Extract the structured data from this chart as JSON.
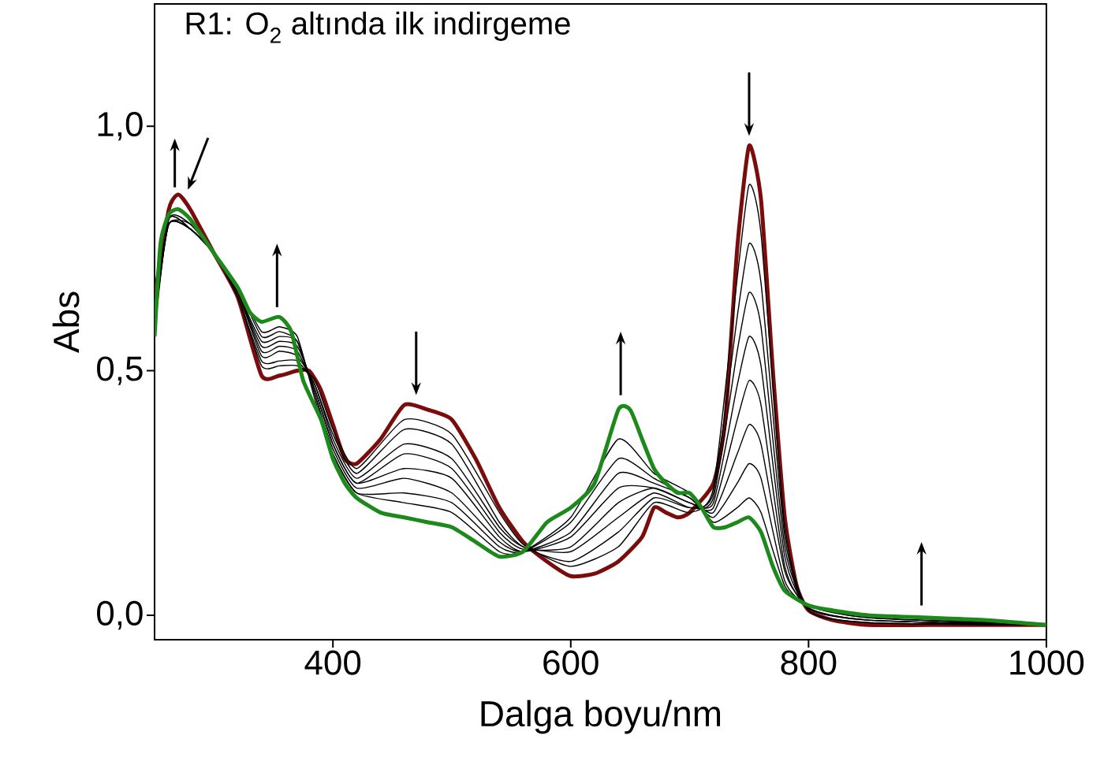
{
  "chart_data": {
    "type": "line",
    "title": "R1: O$_{2}$ altında ilk indirgeme",
    "xlabel": "Dalga boyu/nm",
    "ylabel": "Abs",
    "xlim": [
      250,
      1000
    ],
    "ylim": [
      -0.05,
      1.25
    ],
    "xticks": [
      400,
      600,
      800,
      1000
    ],
    "yticks": [
      {
        "value": 0,
        "label": "0,0"
      },
      {
        "value": 0.5,
        "label": "0,5"
      },
      {
        "value": 1.0,
        "label": "1,0"
      }
    ],
    "grid": false,
    "marker": "none",
    "line_style": "solid",
    "series": [
      {
        "color": "#7b0c0c",
        "x": [
          250,
          262,
          270,
          280,
          300,
          320,
          340,
          355,
          370,
          380,
          390,
          400,
          410,
          420,
          440,
          460,
          480,
          500,
          520,
          540,
          560,
          580,
          600,
          620,
          640,
          660,
          670,
          680,
          690,
          700,
          720,
          730,
          740,
          750,
          760,
          770,
          780,
          790,
          800,
          820,
          850,
          900,
          950,
          1000
        ],
        "values": [
          0.65,
          0.83,
          0.86,
          0.83,
          0.74,
          0.65,
          0.49,
          0.49,
          0.5,
          0.5,
          0.46,
          0.39,
          0.32,
          0.31,
          0.36,
          0.43,
          0.42,
          0.4,
          0.32,
          0.22,
          0.15,
          0.11,
          0.08,
          0.085,
          0.11,
          0.16,
          0.22,
          0.21,
          0.2,
          0.21,
          0.27,
          0.4,
          0.75,
          0.96,
          0.85,
          0.5,
          0.2,
          0.06,
          0.01,
          -0.01,
          -0.02,
          -0.02,
          -0.02,
          -0.02
        ]
      },
      {
        "color": "#000000",
        "x": [
          250,
          262,
          280,
          300,
          320,
          340,
          355,
          370,
          385,
          400,
          420,
          460,
          500,
          540,
          560,
          600,
          640,
          670,
          700,
          720,
          740,
          750,
          760,
          780,
          800,
          850,
          1000
        ],
        "values": [
          0.64,
          0.8,
          0.8,
          0.74,
          0.65,
          0.51,
          0.51,
          0.51,
          0.48,
          0.38,
          0.3,
          0.4,
          0.37,
          0.21,
          0.145,
          0.1,
          0.14,
          0.23,
          0.21,
          0.26,
          0.69,
          0.88,
          0.78,
          0.18,
          0.01,
          -0.015,
          -0.02
        ]
      },
      {
        "color": "#000000",
        "x": [
          250,
          262,
          280,
          300,
          320,
          340,
          355,
          370,
          385,
          400,
          420,
          460,
          500,
          540,
          560,
          600,
          640,
          670,
          700,
          720,
          740,
          750,
          760,
          780,
          800,
          850,
          1000
        ],
        "values": [
          0.63,
          0.8,
          0.79,
          0.74,
          0.65,
          0.52,
          0.52,
          0.52,
          0.47,
          0.37,
          0.29,
          0.38,
          0.35,
          0.19,
          0.14,
          0.11,
          0.17,
          0.24,
          0.22,
          0.25,
          0.61,
          0.76,
          0.68,
          0.16,
          0.01,
          -0.015,
          -0.02
        ]
      },
      {
        "color": "#000000",
        "x": [
          250,
          262,
          280,
          300,
          320,
          340,
          355,
          370,
          385,
          400,
          420,
          460,
          500,
          540,
          560,
          600,
          640,
          670,
          700,
          720,
          740,
          750,
          760,
          780,
          800,
          850,
          1000
        ],
        "values": [
          0.62,
          0.8,
          0.79,
          0.74,
          0.66,
          0.53,
          0.54,
          0.53,
          0.47,
          0.36,
          0.28,
          0.35,
          0.32,
          0.18,
          0.14,
          0.13,
          0.2,
          0.25,
          0.22,
          0.24,
          0.54,
          0.66,
          0.59,
          0.14,
          0.015,
          -0.01,
          -0.02
        ]
      },
      {
        "color": "#000000",
        "x": [
          250,
          262,
          280,
          300,
          320,
          340,
          355,
          370,
          385,
          400,
          420,
          460,
          500,
          540,
          560,
          600,
          640,
          670,
          700,
          720,
          740,
          750,
          760,
          780,
          800,
          850,
          1000
        ],
        "values": [
          0.61,
          0.8,
          0.79,
          0.74,
          0.66,
          0.54,
          0.55,
          0.54,
          0.46,
          0.35,
          0.27,
          0.33,
          0.3,
          0.17,
          0.135,
          0.14,
          0.23,
          0.26,
          0.23,
          0.23,
          0.47,
          0.57,
          0.51,
          0.12,
          0.015,
          -0.01,
          -0.02
        ]
      },
      {
        "color": "#000000",
        "x": [
          250,
          262,
          280,
          300,
          320,
          340,
          355,
          370,
          385,
          400,
          420,
          460,
          500,
          540,
          560,
          600,
          640,
          670,
          700,
          720,
          740,
          750,
          760,
          780,
          800,
          850,
          1000
        ],
        "values": [
          0.6,
          0.8,
          0.79,
          0.74,
          0.66,
          0.55,
          0.56,
          0.55,
          0.46,
          0.35,
          0.27,
          0.3,
          0.28,
          0.16,
          0.13,
          0.16,
          0.26,
          0.26,
          0.23,
          0.22,
          0.4,
          0.48,
          0.43,
          0.1,
          0.015,
          -0.01,
          -0.02
        ]
      },
      {
        "color": "#000000",
        "x": [
          250,
          262,
          280,
          300,
          320,
          340,
          355,
          370,
          385,
          400,
          420,
          460,
          500,
          540,
          560,
          600,
          640,
          670,
          700,
          720,
          740,
          750,
          760,
          780,
          800,
          850,
          1000
        ],
        "values": [
          0.6,
          0.81,
          0.79,
          0.74,
          0.66,
          0.56,
          0.57,
          0.56,
          0.45,
          0.34,
          0.26,
          0.28,
          0.25,
          0.15,
          0.13,
          0.17,
          0.29,
          0.27,
          0.24,
          0.21,
          0.33,
          0.39,
          0.35,
          0.09,
          0.02,
          -0.005,
          -0.02
        ]
      },
      {
        "color": "#000000",
        "x": [
          250,
          262,
          280,
          300,
          320,
          340,
          355,
          370,
          385,
          400,
          420,
          460,
          500,
          540,
          560,
          600,
          640,
          670,
          700,
          720,
          740,
          750,
          760,
          780,
          800,
          850,
          1000
        ],
        "values": [
          0.59,
          0.81,
          0.79,
          0.74,
          0.67,
          0.57,
          0.58,
          0.56,
          0.45,
          0.33,
          0.25,
          0.25,
          0.23,
          0.14,
          0.13,
          0.19,
          0.32,
          0.28,
          0.24,
          0.2,
          0.27,
          0.31,
          0.28,
          0.07,
          0.02,
          -0.005,
          -0.02
        ]
      },
      {
        "color": "#000000",
        "x": [
          250,
          262,
          280,
          300,
          320,
          340,
          355,
          370,
          385,
          400,
          420,
          460,
          500,
          540,
          560,
          600,
          640,
          670,
          700,
          720,
          740,
          750,
          760,
          780,
          800,
          850,
          1000
        ],
        "values": [
          0.58,
          0.81,
          0.8,
          0.74,
          0.67,
          0.58,
          0.59,
          0.57,
          0.44,
          0.33,
          0.25,
          0.23,
          0.21,
          0.13,
          0.13,
          0.2,
          0.36,
          0.29,
          0.25,
          0.19,
          0.22,
          0.24,
          0.21,
          0.06,
          0.02,
          0,
          -0.02
        ]
      },
      {
        "color": "#1b8a1b",
        "x": [
          250,
          255,
          262,
          270,
          280,
          300,
          320,
          330,
          340,
          355,
          365,
          375,
          390,
          400,
          410,
          420,
          440,
          460,
          480,
          500,
          520,
          540,
          560,
          580,
          600,
          620,
          640,
          650,
          660,
          670,
          680,
          690,
          700,
          710,
          720,
          730,
          740,
          750,
          760,
          770,
          780,
          800,
          820,
          850,
          900,
          950,
          1000
        ],
        "values": [
          0.57,
          0.76,
          0.82,
          0.83,
          0.81,
          0.74,
          0.67,
          0.62,
          0.6,
          0.61,
          0.58,
          0.48,
          0.4,
          0.32,
          0.27,
          0.24,
          0.21,
          0.2,
          0.19,
          0.18,
          0.15,
          0.12,
          0.13,
          0.19,
          0.22,
          0.27,
          0.42,
          0.42,
          0.36,
          0.3,
          0.27,
          0.25,
          0.25,
          0.22,
          0.18,
          0.18,
          0.19,
          0.2,
          0.17,
          0.1,
          0.05,
          0.02,
          0.01,
          0,
          -0.005,
          -0.01,
          -0.02
        ]
      }
    ]
  }
}
